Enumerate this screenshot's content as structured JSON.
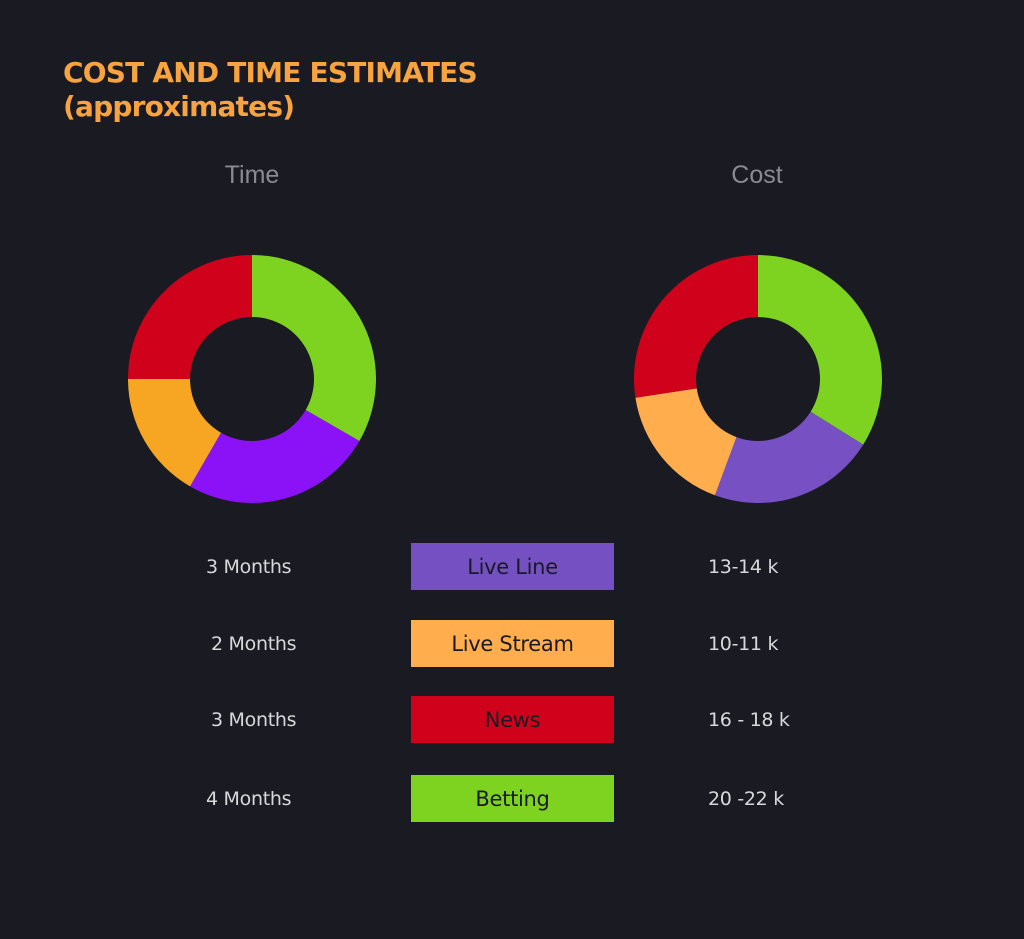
{
  "title": {
    "line1": "COST AND TIME ESTIMATES",
    "line2": "(approximates)"
  },
  "colors": {
    "background": "#1a1a22",
    "title": "#f6a340",
    "heading": "#8a8a92",
    "text": "#d8d8dc",
    "legend_text": "#1a1a22"
  },
  "chart_data": [
    {
      "type": "pie",
      "donut": true,
      "title": "Time",
      "start_angle_deg": -90,
      "categories": [
        "Live Line",
        "Live Stream",
        "News",
        "Betting"
      ],
      "values": [
        3,
        2,
        3,
        4
      ],
      "labels": [
        "3 Months",
        "2 Months",
        "3 Months",
        "4 Months"
      ],
      "order": [
        "Betting",
        "Live Line",
        "Live Stream",
        "News"
      ],
      "colors": {
        "Live Line": "#8b12f7",
        "Live Stream": "#f6a623",
        "News": "#d0021b",
        "Betting": "#7ed321"
      }
    },
    {
      "type": "pie",
      "donut": true,
      "title": "Cost",
      "start_angle_deg": -90,
      "categories": [
        "Live Line",
        "Live Stream",
        "News",
        "Betting"
      ],
      "values": [
        13.5,
        10.5,
        17,
        21
      ],
      "labels": [
        "13-14 k",
        "10-11 k",
        "16 - 18 k",
        "20 -22 k"
      ],
      "order": [
        "Betting",
        "Live Line",
        "Live Stream",
        "News"
      ],
      "colors": {
        "Live Line": "#7750c4",
        "Live Stream": "#ffad4d",
        "News": "#d0021b",
        "Betting": "#7ed321"
      }
    }
  ],
  "legend": [
    {
      "label": "Live Line",
      "color": "#7450c2",
      "text_color": "#1a1a22"
    },
    {
      "label": "Live Stream",
      "color": "#ffad4d",
      "text_color": "#1a1a22"
    },
    {
      "label": "News",
      "color": "#d0021b",
      "text_color": "#1a1a22"
    },
    {
      "label": "Betting",
      "color": "#7ed321",
      "text_color": "#1a1a22"
    }
  ],
  "time_labels": [
    "3 Months",
    "2 Months",
    "3 Months",
    "4 Months"
  ],
  "cost_labels": [
    "13-14 k",
    "10-11 k",
    "16 - 18 k",
    "20 -22 k"
  ]
}
